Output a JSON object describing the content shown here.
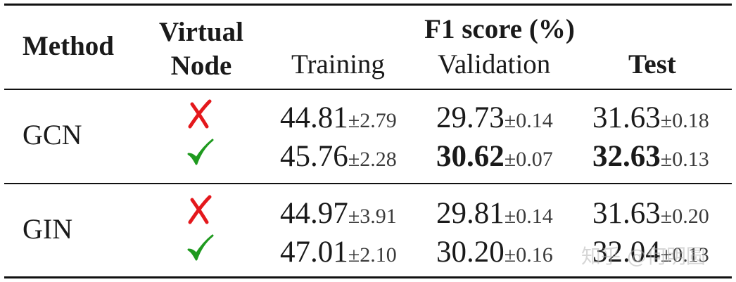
{
  "table": {
    "headers": {
      "method": "Method",
      "virtual_node_line1": "Virtual",
      "virtual_node_line2": "Node",
      "f1_group": "F1 score (%)",
      "training": "Training",
      "validation": "Validation",
      "test": "Test"
    },
    "rows": [
      {
        "method": "GCN",
        "virtual_node": "no",
        "training": {
          "value": "44.81",
          "std": "±2.79"
        },
        "validation": {
          "value": "29.73",
          "std": "±0.14"
        },
        "test": {
          "value": "31.63",
          "std": "±0.18"
        }
      },
      {
        "method": "GCN",
        "virtual_node": "yes",
        "training": {
          "value": "45.76",
          "std": "±2.28"
        },
        "validation": {
          "value": "30.62",
          "std": "±0.07",
          "bold": true
        },
        "test": {
          "value": "32.63",
          "std": "±0.13",
          "bold": true
        }
      },
      {
        "method": "GIN",
        "virtual_node": "no",
        "training": {
          "value": "44.97",
          "std": "±3.91"
        },
        "validation": {
          "value": "29.81",
          "std": "±0.14"
        },
        "test": {
          "value": "31.63",
          "std": "±0.20"
        }
      },
      {
        "method": "GIN",
        "virtual_node": "yes",
        "training": {
          "value": "47.01",
          "std": "±2.10"
        },
        "validation": {
          "value": "30.20",
          "std": "±0.16"
        },
        "test": {
          "value": "32.04",
          "std": "±0.13"
        }
      }
    ],
    "mark_colors": {
      "cross": "#e4181c",
      "check": "#1f9a1f"
    }
  },
  "watermark": "知乎 @何明圆"
}
